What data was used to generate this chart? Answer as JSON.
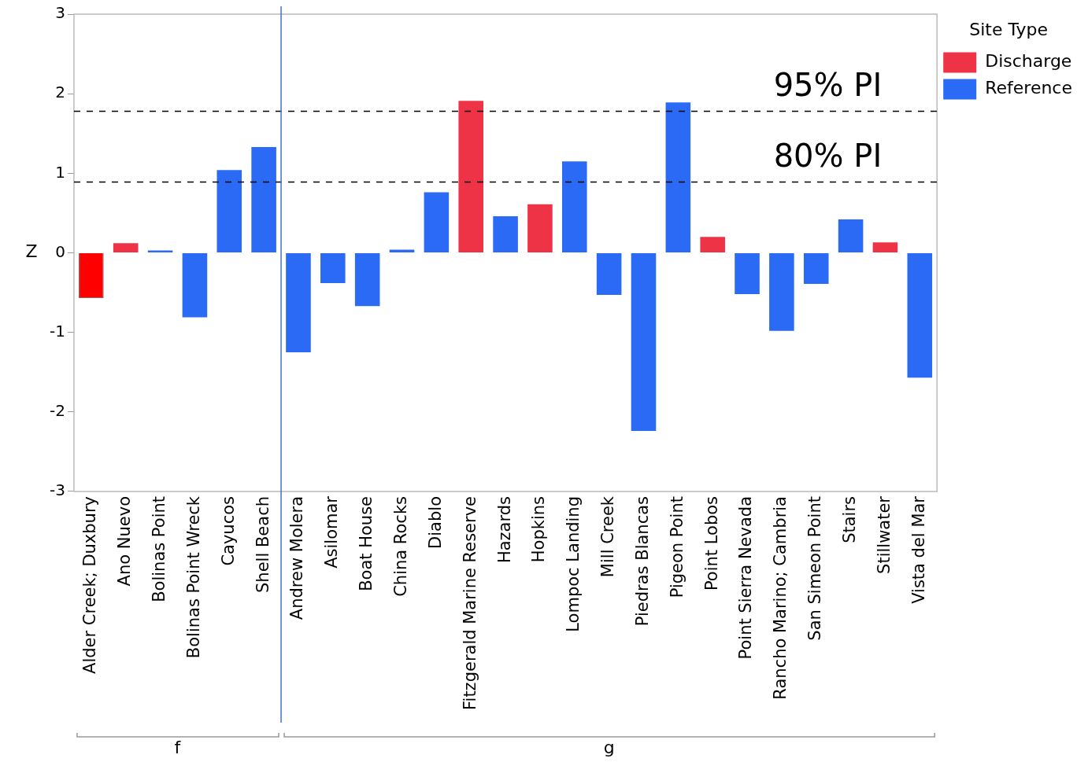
{
  "chart_data": {
    "type": "bar",
    "ylabel": "Z",
    "legend_title": "Site Type",
    "legend": "top right",
    "grid": false,
    "categories": [
      "Alder Creek; Duxbury",
      "Ano Nuevo",
      "Bolinas Point",
      "Bolinas Point Wreck",
      "Cayucos",
      "Shell Beach",
      "Andrew Molera",
      "Asilomar",
      "Boat House",
      "China Rocks",
      "Diablo",
      "Fitzgerald Marine Reserve",
      "Hazards",
      "Hopkins",
      "Lompoc Landing",
      "Mill Creek",
      "Piedras Blancas",
      "Pigeon Point",
      "Point Lobos",
      "Point Sierra Nevada",
      "Rancho Marino; Cambria",
      "San Simeon Point",
      "Stairs",
      "Stillwater",
      "Vista del Mar"
    ],
    "series": [
      {
        "name": "Discharge",
        "color": "#ef3346",
        "colors": [
          "#ff0000",
          null,
          null,
          null,
          null,
          null,
          null,
          null,
          null,
          null,
          null,
          null,
          null,
          null,
          null,
          null,
          null,
          null,
          null,
          null,
          null,
          null,
          null,
          null,
          null
        ],
        "values": [
          -0.57,
          0.12,
          null,
          null,
          null,
          null,
          null,
          null,
          null,
          null,
          null,
          1.91,
          null,
          0.61,
          null,
          null,
          null,
          null,
          0.2,
          null,
          null,
          null,
          null,
          0.13,
          null
        ]
      },
      {
        "name": "Reference",
        "color": "#2a6af5",
        "values": [
          null,
          null,
          0.03,
          -0.81,
          1.04,
          1.33,
          -1.25,
          -0.38,
          -0.67,
          0.04,
          0.76,
          null,
          0.46,
          null,
          1.15,
          -0.53,
          -2.24,
          1.89,
          null,
          -0.52,
          -0.98,
          -0.39,
          0.42,
          null,
          -1.57
        ]
      }
    ],
    "ylim": [
      -3,
      3
    ],
    "yticks": [
      -3,
      -2,
      -1,
      0,
      1,
      2,
      3
    ],
    "ref_lines": [
      {
        "axis": "y",
        "value": 1.78,
        "label": "95% PI",
        "line_style": "dashed",
        "color": "#000000"
      },
      {
        "axis": "y",
        "value": 0.89,
        "label": "80% PI",
        "line_style": "dashed",
        "color": "#000000"
      },
      {
        "axis": "x",
        "value": "Andrew Molera",
        "color": "#4472c4",
        "line_style": "solid"
      }
    ],
    "annotations": [
      "f",
      "g"
    ]
  }
}
